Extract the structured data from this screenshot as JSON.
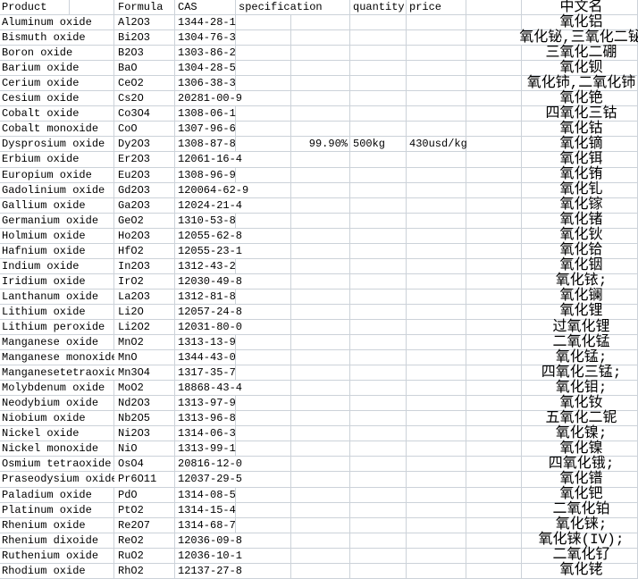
{
  "app": {
    "kind": "spreadsheet-product-table"
  },
  "colors": {
    "grid": "#ccd2d9",
    "text": "#000000",
    "background": "#ffffff"
  },
  "header": {
    "product": "Product",
    "formula": "Formula",
    "cas": "CAS",
    "specification": "specification",
    "quantity": "quantity",
    "price": "price",
    "cn_name": "中文名"
  },
  "rows": [
    {
      "product": "Aluminum oxide",
      "formula": "Al2O3",
      "cas": "1344-28-1",
      "specification": "",
      "quantity": "",
      "price": "",
      "cn_name": "氧化铝"
    },
    {
      "product": "Bismuth oxide",
      "formula": "Bi2O3",
      "cas": "1304-76-3",
      "specification": "",
      "quantity": "",
      "price": "",
      "cn_name": "氧化铋,三氧化二铋"
    },
    {
      "product": "Boron oxide",
      "formula": "B2O3",
      "cas": "1303-86-2",
      "specification": "",
      "quantity": "",
      "price": "",
      "cn_name": "三氧化二硼"
    },
    {
      "product": "Barium oxide",
      "formula": "BaO",
      "cas": "1304-28-5",
      "specification": "",
      "quantity": "",
      "price": "",
      "cn_name": "氧化钡"
    },
    {
      "product": "Cerium oxide",
      "formula": "CeO2",
      "cas": "1306-38-3",
      "specification": "",
      "quantity": "",
      "price": "",
      "cn_name": "氧化铈,二氧化铈"
    },
    {
      "product": "Cesium oxide",
      "formula": "Cs2O",
      "cas": "20281-00-9",
      "specification": "",
      "quantity": "",
      "price": "",
      "cn_name": "氧化铯"
    },
    {
      "product": "Cobalt oxide",
      "formula": "Co3O4",
      "cas": "1308-06-1",
      "specification": "",
      "quantity": "",
      "price": "",
      "cn_name": "四氧化三钴"
    },
    {
      "product": "Cobalt monoxide",
      "formula": "CoO",
      "cas": "1307-96-6",
      "specification": "",
      "quantity": "",
      "price": "",
      "cn_name": "氧化钴"
    },
    {
      "product": "Dysprosium oxide",
      "formula": "Dy2O3",
      "cas": "1308-87-8",
      "specification": "99.90%",
      "quantity": "500kg",
      "price": "430usd/kg",
      "cn_name": "氧化镝"
    },
    {
      "product": "Erbium oxide",
      "formula": "Er2O3",
      "cas": "12061-16-4",
      "specification": "",
      "quantity": "",
      "price": "",
      "cn_name": "氧化铒"
    },
    {
      "product": "Europium oxide",
      "formula": "Eu2O3",
      "cas": "1308-96-9",
      "specification": "",
      "quantity": "",
      "price": "",
      "cn_name": "氧化铕"
    },
    {
      "product": "Gadolinium oxide",
      "formula": "Gd2O3",
      "cas": "120064-62-9",
      "specification": "",
      "quantity": "",
      "price": "",
      "cn_name": "氧化钆"
    },
    {
      "product": "Gallium oxide",
      "formula": "Ga2O3",
      "cas": "12024-21-4",
      "specification": "",
      "quantity": "",
      "price": "",
      "cn_name": "氧化镓"
    },
    {
      "product": "Germanium oxide",
      "formula": "GeO2",
      "cas": "1310-53-8",
      "specification": "",
      "quantity": "",
      "price": "",
      "cn_name": "氧化锗"
    },
    {
      "product": "Holmium oxide",
      "formula": "Ho2O3",
      "cas": "12055-62-8",
      "specification": "",
      "quantity": "",
      "price": "",
      "cn_name": "氧化钬"
    },
    {
      "product": "Hafnium oxide",
      "formula": "HfO2",
      "cas": "12055-23-1",
      "specification": "",
      "quantity": "",
      "price": "",
      "cn_name": "氧化铪"
    },
    {
      "product": "Indium oxide",
      "formula": "In2O3",
      "cas": "1312-43-2",
      "specification": "",
      "quantity": "",
      "price": "",
      "cn_name": "氧化铟"
    },
    {
      "product": "Iridium oxide",
      "formula": "IrO2",
      "cas": "12030-49-8",
      "specification": "",
      "quantity": "",
      "price": "",
      "cn_name": "氧化铱;"
    },
    {
      "product": "Lanthanum oxide",
      "formula": "La2O3",
      "cas": "1312-81-8",
      "specification": "",
      "quantity": "",
      "price": "",
      "cn_name": "氧化镧"
    },
    {
      "product": "Lithium oxide",
      "formula": "Li2O",
      "cas": "12057-24-8",
      "specification": "",
      "quantity": "",
      "price": "",
      "cn_name": "氧化锂"
    },
    {
      "product": "Lithium peroxide",
      "formula": "Li2O2",
      "cas": "12031-80-0",
      "specification": "",
      "quantity": "",
      "price": "",
      "cn_name": "过氧化锂"
    },
    {
      "product": "Manganese oxide",
      "formula": "MnO2",
      "cas": "1313-13-9",
      "specification": "",
      "quantity": "",
      "price": "",
      "cn_name": "二氧化锰"
    },
    {
      "product": "Manganese monoxide",
      "formula": "MnO",
      "cas": "1344-43-0",
      "specification": "",
      "quantity": "",
      "price": "",
      "cn_name": "氧化锰;"
    },
    {
      "product": "Manganesetetraoxide",
      "formula": "Mn3O4",
      "cas": "1317-35-7",
      "specification": "",
      "quantity": "",
      "price": "",
      "cn_name": "四氧化三锰;"
    },
    {
      "product": "Molybdenum oxide",
      "formula": "MoO2",
      "cas": "18868-43-4",
      "specification": "",
      "quantity": "",
      "price": "",
      "cn_name": "氧化钼;"
    },
    {
      "product": "Neodybium oxide",
      "formula": "Nd2O3",
      "cas": "1313-97-9",
      "specification": "",
      "quantity": "",
      "price": "",
      "cn_name": "氧化钕"
    },
    {
      "product": "Niobium oxide",
      "formula": "Nb2O5",
      "cas": "1313-96-8",
      "specification": "",
      "quantity": "",
      "price": "",
      "cn_name": "五氧化二铌"
    },
    {
      "product": "Nickel oxide",
      "formula": "Ni2O3",
      "cas": "1314-06-3",
      "specification": "",
      "quantity": "",
      "price": "",
      "cn_name": "氧化镍;"
    },
    {
      "product": "Nickel monoxide",
      "formula": "NiO",
      "cas": "1313-99-1",
      "specification": "",
      "quantity": "",
      "price": "",
      "cn_name": "氧化镍"
    },
    {
      "product": "Osmium tetraoxide",
      "formula": "OsO4",
      "cas": "20816-12-0",
      "specification": "",
      "quantity": "",
      "price": "",
      "cn_name": "四氧化锇;"
    },
    {
      "product": "Praseodysium oxide",
      "formula": "Pr6O11",
      "cas": "12037-29-5",
      "specification": "",
      "quantity": "",
      "price": "",
      "cn_name": "氧化镨"
    },
    {
      "product": "Paladium oxide",
      "formula": "PdO",
      "cas": "1314-08-5",
      "specification": "",
      "quantity": "",
      "price": "",
      "cn_name": "氧化钯"
    },
    {
      "product": "Platinum oxide",
      "formula": "PtO2",
      "cas": "1314-15-4",
      "specification": "",
      "quantity": "",
      "price": "",
      "cn_name": "二氧化铂"
    },
    {
      "product": "Rhenium oxide",
      "formula": "Re2O7",
      "cas": "1314-68-7",
      "specification": "",
      "quantity": "",
      "price": "",
      "cn_name": "氧化铼;"
    },
    {
      "product": "Rhenium dixoide",
      "formula": "ReO2",
      "cas": "12036-09-8",
      "specification": "",
      "quantity": "",
      "price": "",
      "cn_name": "氧化铼(IV);"
    },
    {
      "product": "Ruthenium oxide",
      "formula": "RuO2",
      "cas": "12036-10-1",
      "specification": "",
      "quantity": "",
      "price": "",
      "cn_name": "二氧化钌"
    },
    {
      "product": "Rhodium oxide",
      "formula": "RhO2",
      "cas": "12137-27-8",
      "specification": "",
      "quantity": "",
      "price": "",
      "cn_name": "氧化铑"
    }
  ]
}
